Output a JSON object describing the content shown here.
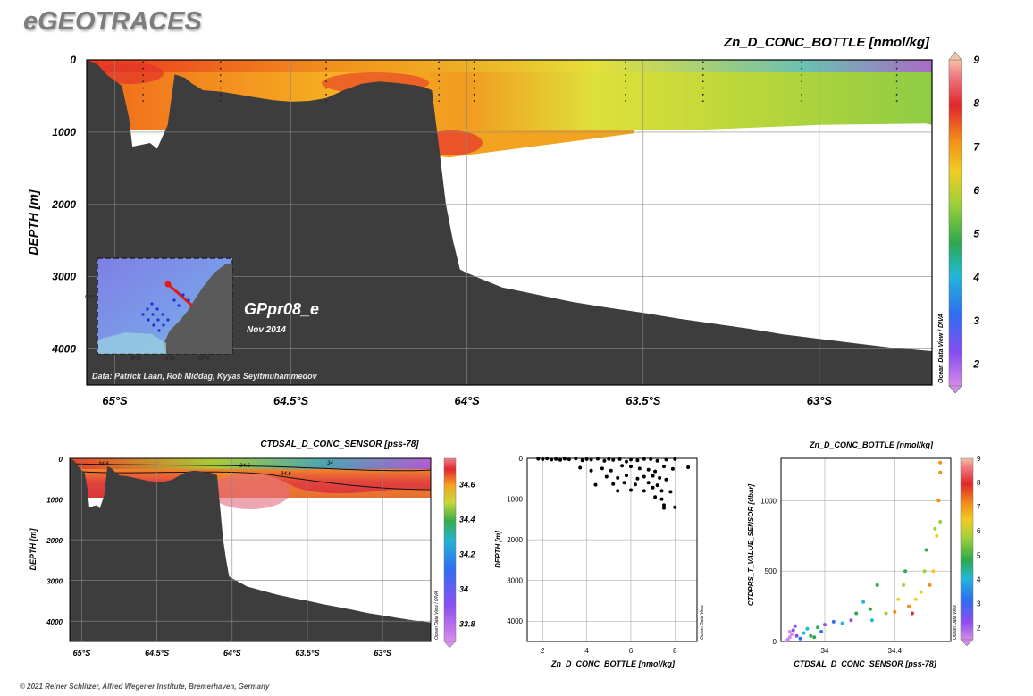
{
  "brand": "eGEOTRACES",
  "copyright": "© 2021 Reiner Schlitzer, Alfred Wegener Institute, Bremerhaven, Germany",
  "section_label": "GPpr08_e",
  "section_date": "Nov 2014",
  "credit": "Data: Patrick Laan, Rob Middag, Kyyas Seyitmuhammedov",
  "odv_watermark": "Ocean Data View / DIVA",
  "odv_watermark_short": "Ocean Data View",
  "inset_map": {
    "lon_labels": [
      "68°W",
      "64°W",
      "60°W"
    ],
    "lat_label": "64°S"
  },
  "chart_data": [
    {
      "id": "main",
      "type": "heatmap",
      "title": "Zn_D_CONC_BOTTLE [nmol/kg]",
      "ylabel": "DEPTH [m]",
      "xlabel": "",
      "x_ticks": [
        "65°S",
        "64.5°S",
        "64°S",
        "63.5°S",
        "63°S"
      ],
      "x_tick_values": [
        -65.0,
        -64.5,
        -64.0,
        -63.5,
        -63.0
      ],
      "xlim": [
        -65.08,
        -62.68
      ],
      "y_ticks": [
        "0",
        "1000",
        "2000",
        "3000",
        "4000"
      ],
      "y_tick_values": [
        0,
        1000,
        2000,
        3000,
        4000
      ],
      "ylim": [
        0,
        4500
      ],
      "colorbar": {
        "min": 1.5,
        "max": 9,
        "ticks": [
          2,
          3,
          4,
          5,
          6,
          7,
          8,
          9
        ]
      },
      "value_range": [
        1.5,
        9
      ],
      "grid": true,
      "data_columns_depth_m": [
        {
          "x": -64.4,
          "d": 1150
        },
        {
          "x": -64.05,
          "d": 1350
        },
        {
          "x": -63.5,
          "d": 1000
        },
        {
          "x": -63.0,
          "d": 900
        },
        {
          "x": -62.7,
          "d": 880
        }
      ],
      "bathymetry": [
        [
          -65.08,
          0
        ],
        [
          -65.05,
          60
        ],
        [
          -65.02,
          220
        ],
        [
          -64.98,
          360
        ],
        [
          -64.96,
          800
        ],
        [
          -64.95,
          1200
        ],
        [
          -64.9,
          1150
        ],
        [
          -64.88,
          1230
        ],
        [
          -64.85,
          900
        ],
        [
          -64.83,
          200
        ],
        [
          -64.8,
          250
        ],
        [
          -64.78,
          330
        ],
        [
          -64.75,
          420
        ],
        [
          -64.7,
          440
        ],
        [
          -64.65,
          480
        ],
        [
          -64.6,
          520
        ],
        [
          -64.55,
          560
        ],
        [
          -64.5,
          580
        ],
        [
          -64.45,
          570
        ],
        [
          -64.4,
          530
        ],
        [
          -64.35,
          420
        ],
        [
          -64.3,
          330
        ],
        [
          -64.25,
          300
        ],
        [
          -64.2,
          320
        ],
        [
          -64.15,
          350
        ],
        [
          -64.12,
          380
        ],
        [
          -64.1,
          420
        ],
        [
          -64.08,
          1200
        ],
        [
          -64.06,
          2000
        ],
        [
          -64.04,
          2500
        ],
        [
          -64.02,
          2900
        ],
        [
          -64.0,
          2950
        ],
        [
          -63.95,
          3050
        ],
        [
          -63.9,
          3150
        ],
        [
          -63.85,
          3200
        ],
        [
          -63.8,
          3250
        ],
        [
          -63.7,
          3350
        ],
        [
          -63.6,
          3430
        ],
        [
          -63.5,
          3500
        ],
        [
          -63.4,
          3580
        ],
        [
          -63.3,
          3650
        ],
        [
          -63.2,
          3720
        ],
        [
          -63.1,
          3800
        ],
        [
          -63.0,
          3860
        ],
        [
          -62.9,
          3920
        ],
        [
          -62.8,
          3980
        ],
        [
          -62.68,
          4030
        ]
      ]
    },
    {
      "id": "salinity_section",
      "type": "heatmap",
      "title": "CTDSAL_D_CONC_SENSOR [pss-78]",
      "ylabel": "DEPTH [m]",
      "xlabel": "",
      "x_ticks": [
        "65°S",
        "64.5°S",
        "64°S",
        "63.5°S",
        "63°S"
      ],
      "x_tick_values": [
        -65.0,
        -64.5,
        -64.0,
        -63.5,
        -63.0
      ],
      "xlim": [
        -65.08,
        -62.68
      ],
      "y_ticks": [
        "0",
        "1000",
        "2000",
        "3000",
        "4000"
      ],
      "y_tick_values": [
        0,
        1000,
        2000,
        3000,
        4000
      ],
      "ylim": [
        0,
        4500
      ],
      "colorbar": {
        "min": 33.7,
        "max": 34.75,
        "ticks": [
          "33.8",
          "34",
          "34.2",
          "34.4",
          "34.6"
        ],
        "tick_values": [
          33.8,
          34.0,
          34.2,
          34.4,
          34.6
        ]
      },
      "contour_labels": [
        "34.6",
        "34",
        "34.6",
        "34.6",
        "34"
      ],
      "grid": true
    },
    {
      "id": "zn_profile",
      "type": "scatter",
      "title": "",
      "xlabel": "Zn_D_CONC_BOTTLE [nmol/kg]",
      "ylabel": "DEPTH [m]",
      "x_ticks": [
        "2",
        "4",
        "6",
        "8"
      ],
      "x_tick_values": [
        2,
        4,
        6,
        8
      ],
      "xlim": [
        1.3,
        9.0
      ],
      "y_ticks": [
        "0",
        "1000",
        "2000",
        "3000",
        "4000"
      ],
      "y_tick_values": [
        0,
        1000,
        2000,
        3000,
        4000
      ],
      "ylim": [
        0,
        4500
      ],
      "grid": true,
      "points": [
        [
          1.8,
          10
        ],
        [
          2.0,
          20
        ],
        [
          2.2,
          5
        ],
        [
          2.4,
          30
        ],
        [
          2.6,
          15
        ],
        [
          2.8,
          40
        ],
        [
          3.0,
          10
        ],
        [
          3.2,
          25
        ],
        [
          3.5,
          5
        ],
        [
          3.8,
          50
        ],
        [
          4.0,
          20
        ],
        [
          4.2,
          30
        ],
        [
          4.5,
          10
        ],
        [
          4.8,
          60
        ],
        [
          5.0,
          15
        ],
        [
          5.2,
          40
        ],
        [
          5.5,
          20
        ],
        [
          5.8,
          80
        ],
        [
          6.0,
          30
        ],
        [
          6.3,
          50
        ],
        [
          6.6,
          15
        ],
        [
          6.9,
          20
        ],
        [
          7.2,
          60
        ],
        [
          7.6,
          30
        ],
        [
          8.0,
          20
        ],
        [
          8.6,
          220
        ],
        [
          3.7,
          230
        ],
        [
          4.2,
          300
        ],
        [
          4.7,
          250
        ],
        [
          5.1,
          300
        ],
        [
          5.6,
          180
        ],
        [
          6.0,
          200
        ],
        [
          6.4,
          250
        ],
        [
          6.8,
          280
        ],
        [
          7.1,
          320
        ],
        [
          7.5,
          200
        ],
        [
          7.9,
          260
        ],
        [
          4.9,
          450
        ],
        [
          5.4,
          480
        ],
        [
          5.8,
          420
        ],
        [
          6.3,
          500
        ],
        [
          6.6,
          450
        ],
        [
          7.0,
          430
        ],
        [
          7.3,
          480
        ],
        [
          7.6,
          520
        ],
        [
          4.4,
          650
        ],
        [
          5.2,
          630
        ],
        [
          5.7,
          600
        ],
        [
          6.2,
          640
        ],
        [
          6.8,
          600
        ],
        [
          7.2,
          660
        ],
        [
          5.4,
          800
        ],
        [
          6.0,
          780
        ],
        [
          6.6,
          800
        ],
        [
          7.0,
          720
        ],
        [
          7.4,
          800
        ],
        [
          7.8,
          820
        ],
        [
          7.1,
          950
        ],
        [
          7.4,
          1000
        ],
        [
          7.5,
          1150
        ],
        [
          7.5,
          1220
        ],
        [
          8.0,
          1200
        ]
      ]
    },
    {
      "id": "ts_scatter",
      "type": "scatter",
      "title": "Zn_D_CONC_BOTTLE [nmol/kg]",
      "xlabel": "CTDSAL_D_CONC_SENSOR [pss-78]",
      "ylabel": "CTDPRS_T_VALUE_SENSOR [dbar]",
      "x_ticks": [
        "34",
        "34.4"
      ],
      "x_tick_values": [
        34.0,
        34.4
      ],
      "xlim": [
        33.75,
        34.72
      ],
      "y_ticks": [
        "0",
        "500",
        "1000"
      ],
      "y_tick_values": [
        0,
        500,
        1000
      ],
      "ylim": [
        0,
        1300
      ],
      "colorbar": {
        "min": 1.5,
        "max": 9,
        "ticks": [
          "2",
          "3",
          "4",
          "5",
          "6",
          "7",
          "8",
          "9"
        ],
        "tick_values": [
          2,
          3,
          4,
          5,
          6,
          7,
          8,
          9
        ]
      },
      "grid": true,
      "points": [
        [
          33.78,
          5,
          1.8
        ],
        [
          33.79,
          15,
          2.0
        ],
        [
          33.8,
          30,
          1.9
        ],
        [
          33.81,
          50,
          2.2
        ],
        [
          33.82,
          80,
          2.4
        ],
        [
          33.83,
          110,
          2.6
        ],
        [
          33.8,
          70,
          2.1
        ],
        [
          33.84,
          40,
          3.1
        ],
        [
          33.86,
          20,
          3.5
        ],
        [
          33.88,
          60,
          4.2
        ],
        [
          33.9,
          90,
          4.6
        ],
        [
          33.92,
          40,
          4.9
        ],
        [
          33.94,
          30,
          5.1
        ],
        [
          33.96,
          100,
          5.3
        ],
        [
          33.98,
          70,
          3.8
        ],
        [
          34.0,
          120,
          2.8
        ],
        [
          34.05,
          140,
          3.6
        ],
        [
          34.1,
          130,
          4.3
        ],
        [
          34.15,
          150,
          2.6
        ],
        [
          34.18,
          200,
          5.2
        ],
        [
          34.22,
          280,
          4.4
        ],
        [
          34.26,
          230,
          5.5
        ],
        [
          34.27,
          150,
          4.6
        ],
        [
          34.3,
          400,
          4.9
        ],
        [
          34.35,
          200,
          6.0
        ],
        [
          34.4,
          210,
          7.6
        ],
        [
          34.42,
          300,
          7.1
        ],
        [
          34.45,
          400,
          6.3
        ],
        [
          34.46,
          500,
          5.4
        ],
        [
          34.48,
          250,
          7.8
        ],
        [
          34.5,
          200,
          8.3
        ],
        [
          34.52,
          300,
          6.9
        ],
        [
          34.55,
          350,
          6.7
        ],
        [
          34.57,
          500,
          6.4
        ],
        [
          34.58,
          650,
          5.6
        ],
        [
          34.6,
          400,
          7.3
        ],
        [
          34.62,
          500,
          6.8
        ],
        [
          34.63,
          800,
          6.1
        ],
        [
          34.64,
          750,
          6.6
        ],
        [
          34.65,
          1000,
          7.4
        ],
        [
          34.66,
          1200,
          7.9
        ],
        [
          34.66,
          1270,
          7.6
        ],
        [
          34.66,
          850,
          6.2
        ]
      ]
    }
  ],
  "colors": {
    "bathymetry": "#3d3d3d",
    "grid": "#8a8a8a",
    "frame": "#000000",
    "scatter_point": "#000000"
  }
}
